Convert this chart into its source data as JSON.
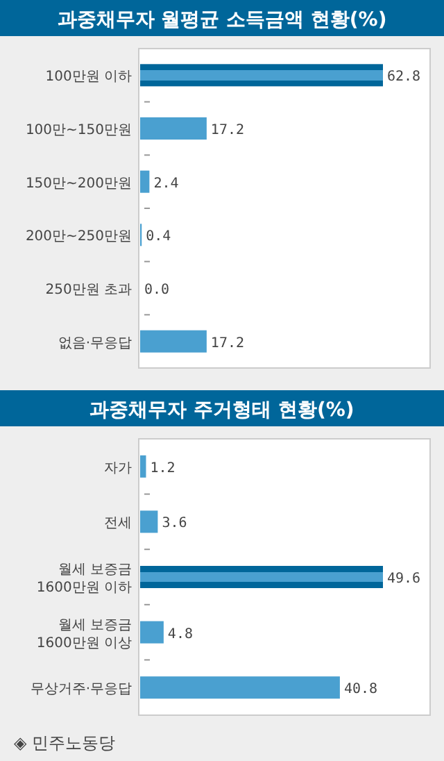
{
  "chart_data": [
    {
      "type": "bar",
      "orientation": "horizontal",
      "title": "과중채무자 월평균 소득금액 현황(%)",
      "categories": [
        "100만원 이하",
        "100만~150만원",
        "150만~200만원",
        "200만~250만원",
        "250만원 초과",
        "없음·무응답"
      ],
      "values": [
        62.8,
        17.2,
        2.4,
        0.4,
        0.0,
        17.2
      ],
      "value_labels": [
        "62.8",
        "17.2",
        "2.4",
        "0.4",
        "0.0",
        "17.2"
      ],
      "color": "#4aa0d0",
      "colors": [
        "#00669a",
        "#4aa0d0",
        "#4aa0d0",
        "#4aa0d0",
        "#4aa0d0",
        "#4aa0d0"
      ]
    },
    {
      "type": "bar",
      "orientation": "horizontal",
      "title": "과중채무자 주거형태 현황(%)",
      "categories": [
        "자가",
        "전세",
        "월세 보증금\n1600만원 이하",
        "월세 보증금\n1600만원 이상",
        "무상거주·무응답"
      ],
      "values": [
        1.2,
        3.6,
        49.6,
        4.8,
        40.8
      ],
      "value_labels": [
        "1.2",
        "3.6",
        "49.6",
        "4.8",
        "40.8"
      ],
      "color": "#4aa0d0",
      "colors": [
        "#4aa0d0",
        "#4aa0d0",
        "#00669a",
        "#4aa0d0",
        "#4aa0d0"
      ],
      "annotations": [
        "◈ 민주노동당"
      ]
    }
  ]
}
